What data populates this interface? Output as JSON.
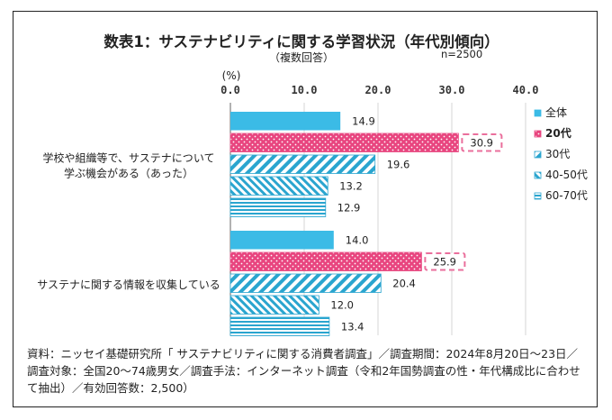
{
  "chart_data": {
    "type": "bar",
    "orientation": "horizontal",
    "title": "数表1：サステナビリティに関する学習状況（年代別傾向）",
    "subtitle": "（複数回答）",
    "sample_size": "n=2500",
    "unit_label": "(%)",
    "xlim": [
      0,
      40
    ],
    "x_ticks": [
      "0.0",
      "10.0",
      "20.0",
      "30.0",
      "40.0"
    ],
    "grid": true,
    "legend_position": "right",
    "categories": [
      {
        "label_lines": [
          "学校や組織等で、サステナについて",
          "学ぶ機会がある（あった）"
        ]
      },
      {
        "label_lines": [
          "サステナに関する情報を収集している"
        ]
      }
    ],
    "series": [
      {
        "name": "全体",
        "values": [
          14.9,
          14.0
        ],
        "labels": [
          "14.9",
          "14.0"
        ],
        "color": "#3bbbe6",
        "pattern": "solid",
        "highlight": false
      },
      {
        "name": "20代",
        "values": [
          30.9,
          25.9
        ],
        "labels": [
          "30.9",
          "25.9"
        ],
        "color": "#e8457f",
        "pattern": "dots",
        "highlight": true
      },
      {
        "name": "30代",
        "values": [
          19.6,
          20.4
        ],
        "labels": [
          "19.6",
          "20.4"
        ],
        "color": "#2aa5cf",
        "pattern": "diagonal",
        "highlight": false
      },
      {
        "name": "40-50代",
        "values": [
          13.2,
          12.0
        ],
        "labels": [
          "13.2",
          "12.0"
        ],
        "color": "#2aa5cf",
        "pattern": "diagonal-dense",
        "highlight": false
      },
      {
        "name": "60-70代",
        "values": [
          12.9,
          13.4
        ],
        "labels": [
          "12.9",
          "13.4"
        ],
        "color": "#2aa5cf",
        "pattern": "horizontal",
        "highlight": false
      }
    ]
  },
  "footnote": {
    "lines": [
      "資料：ニッセイ基礎研究所「 サステナビリティに関する消費者調査」／調査期間：2024年8月20日～23日／",
      "調査対象：全国20～74歳男女／調査手法：インターネット調査（令和2年国勢調査の性・年代構成比に合わせ",
      "て抽出）／有効回答数：2,500）"
    ]
  }
}
